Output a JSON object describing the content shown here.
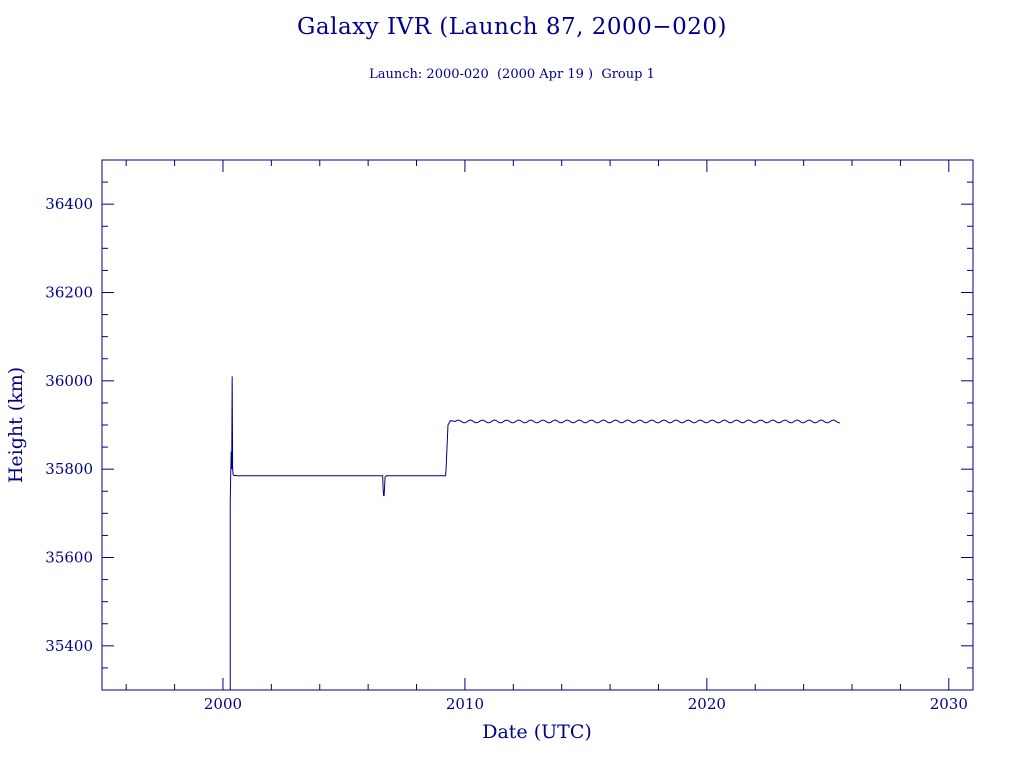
{
  "chart_data": {
    "type": "line",
    "title": "Galaxy IVR (Launch 87, 2000−020)",
    "subtitle": "Launch: 2000-020  (2000 Apr 19 )  Group 1",
    "xlabel": "Date (UTC)",
    "ylabel": "Height (km)",
    "xlim": [
      1995,
      2031
    ],
    "ylim": [
      35300,
      36500
    ],
    "x_ticks": [
      2000,
      2010,
      2020,
      2030
    ],
    "y_ticks": [
      35400,
      35600,
      35800,
      36000,
      36200,
      36400
    ],
    "grid": false,
    "colors": {
      "line": "#00008b",
      "axes": "#00008b",
      "text": "#00008b"
    },
    "series": [
      {
        "x": [
          2000.3,
          2000.3,
          2000.32,
          2000.34,
          2000.36,
          2000.38,
          2000.4,
          2000.42,
          2000.46,
          2000.5,
          2000.6,
          2001,
          2002,
          2003,
          2004,
          2005,
          2006,
          2006.6,
          2006.62,
          2006.64,
          2006.66,
          2006.68,
          2006.7,
          2006.75,
          2007,
          2008,
          2009,
          2009.2,
          2009.22,
          2009.3,
          2009.4,
          2009.6
        ],
        "y": [
          35300,
          35720,
          35790,
          35840,
          35800,
          36010,
          35800,
          35788,
          35785,
          35786,
          35785,
          35785,
          35785,
          35785,
          35785,
          35785,
          35785,
          35785,
          35755,
          35740,
          35740,
          35760,
          35782,
          35785,
          35785,
          35785,
          35785,
          35785,
          35800,
          35900,
          35910,
          35908
        ]
      },
      {
        "x_start": 2009.6,
        "x_end": 2025.5,
        "mean": 35908,
        "amplitude": 3,
        "period_years": 0.5
      }
    ]
  }
}
